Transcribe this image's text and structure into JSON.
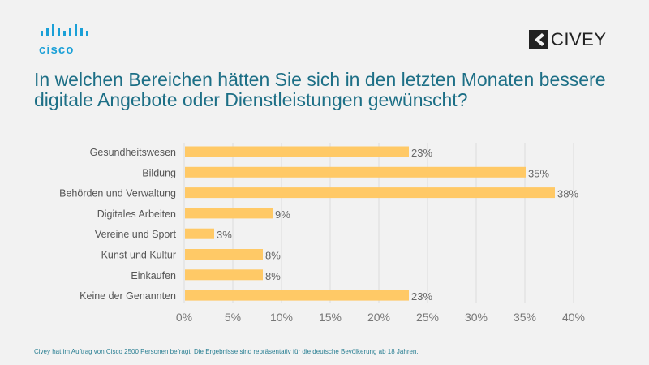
{
  "logos": {
    "cisco": "cisco",
    "civey": "CIVEY"
  },
  "title_line1": "In welchen Bereichen hätten Sie sich in den letzten Monaten bessere",
  "title_line2": "digitale Angebote oder Dienstleistungen gewünscht?",
  "footer": "Civey hat im Auftrag von Cisco 2500 Personen befragt. Die Ergebnisse sind repräsentativ für die deutsche Bevölkerung ab 18 Jahren.",
  "colors": {
    "bar": "#ffc966",
    "title": "#1d6f86",
    "cisco": "#1ba0d7"
  },
  "chart_data": {
    "type": "bar",
    "orientation": "horizontal",
    "categories": [
      "Gesundheitswesen",
      "Bildung",
      "Behörden und Verwaltung",
      "Digitales Arbeiten",
      "Vereine und Sport",
      "Kunst und Kultur",
      "Einkaufen",
      "Keine der Genannten"
    ],
    "values": [
      23,
      35,
      38,
      9,
      3,
      8,
      8,
      23
    ],
    "data_labels": [
      "23%",
      "35%",
      "38%",
      "9%",
      "3%",
      "8%",
      "8%",
      "23%"
    ],
    "xlim": [
      0,
      40
    ],
    "xticks": [
      0,
      5,
      10,
      15,
      20,
      25,
      30,
      35,
      40
    ],
    "xtick_labels": [
      "0%",
      "5%",
      "10%",
      "15%",
      "20%",
      "25%",
      "30%",
      "35%",
      "40%"
    ],
    "grid": "vertical"
  }
}
